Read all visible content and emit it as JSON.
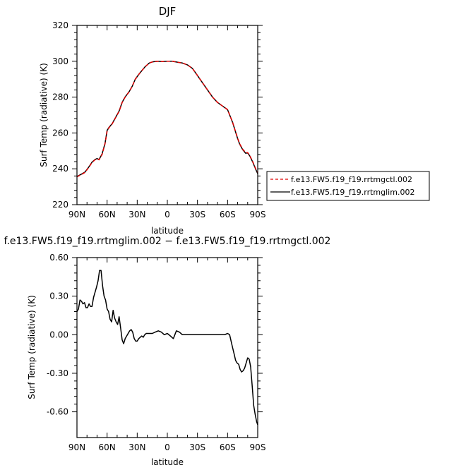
{
  "chart_data": [
    {
      "type": "line",
      "title": "DJF",
      "xlabel": "latitude",
      "ylabel": "Surf Temp (radiative) (K)",
      "xlim": [
        90,
        -90
      ],
      "ylim": [
        220,
        320
      ],
      "x_ticks": [
        90,
        60,
        30,
        0,
        -30,
        -60,
        -90
      ],
      "x_tick_labels": [
        "90N",
        "60N",
        "30N",
        "0",
        "30S",
        "60S",
        "90S"
      ],
      "y_ticks": [
        220,
        240,
        260,
        280,
        300,
        320
      ],
      "y_tick_labels": [
        "220",
        "240",
        "260",
        "280",
        "300",
        "320"
      ],
      "legend_position": "right",
      "series": [
        {
          "name": "f.e13.FW5.f19_f19.rrtmgctl.002",
          "color": "#e00000",
          "dash": "dashed",
          "x": [
            90,
            85,
            82,
            78,
            75,
            72,
            70,
            68,
            65,
            62,
            60,
            58,
            55,
            52,
            48,
            45,
            42,
            38,
            35,
            32,
            28,
            25,
            22,
            18,
            15,
            10,
            5,
            0,
            -5,
            -10,
            -15,
            -20,
            -25,
            -30,
            -35,
            -40,
            -45,
            -50,
            -55,
            -60,
            -65,
            -70,
            -72,
            -75,
            -78,
            -80,
            -82,
            -85,
            -88,
            -90
          ],
          "y": [
            235.5,
            237,
            238,
            241,
            243.5,
            245,
            245.5,
            245,
            248,
            254,
            261,
            263,
            265,
            268,
            272,
            277,
            280,
            283,
            286,
            290,
            293,
            295,
            297,
            299,
            299.6,
            300,
            299.8,
            300,
            300,
            299.5,
            299,
            298,
            296,
            292,
            288,
            284,
            280,
            277,
            275,
            273,
            266,
            257,
            254,
            251,
            249,
            249,
            247.5,
            244,
            240,
            238
          ]
        },
        {
          "name": "f.e13.FW5.f19_f19.rrtmglim.002",
          "color": "#000000",
          "dash": "solid",
          "x": [
            90,
            85,
            82,
            78,
            75,
            72,
            70,
            68,
            65,
            62,
            60,
            58,
            55,
            52,
            48,
            45,
            42,
            38,
            35,
            32,
            28,
            25,
            22,
            18,
            15,
            10,
            5,
            0,
            -5,
            -10,
            -15,
            -20,
            -25,
            -30,
            -35,
            -40,
            -45,
            -50,
            -55,
            -60,
            -65,
            -70,
            -72,
            -75,
            -78,
            -80,
            -82,
            -85,
            -88,
            -90
          ],
          "y": [
            235.7,
            237.2,
            238.2,
            241.2,
            243.7,
            245.2,
            245.7,
            245.2,
            248.3,
            254.3,
            261.4,
            263.2,
            265.1,
            268.1,
            272.2,
            277.1,
            280.1,
            283.1,
            286,
            289.9,
            293,
            295,
            297,
            299,
            299.6,
            300,
            299.8,
            300,
            300,
            299.5,
            299,
            298,
            296,
            292,
            288,
            284,
            280,
            277,
            275,
            273,
            265.9,
            256.8,
            253.8,
            250.7,
            248.7,
            248.8,
            247.3,
            243.8,
            239.7,
            237.3
          ]
        }
      ]
    },
    {
      "type": "line",
      "title": "f.e13.FW5.f19_f19.rrtmglim.002 − f.e13.FW5.f19_f19.rrtmgctl.002",
      "xlabel": "latitude",
      "ylabel": "Surf Temp (radiative) (K)",
      "xlim": [
        90,
        -90
      ],
      "ylim": [
        -0.8,
        0.6
      ],
      "x_ticks": [
        90,
        60,
        30,
        0,
        -30,
        -60,
        -90
      ],
      "x_tick_labels": [
        "90N",
        "60N",
        "30N",
        "0",
        "30S",
        "60S",
        "90S"
      ],
      "y_ticks": [
        -0.6,
        -0.3,
        0.0,
        0.3,
        0.6
      ],
      "y_tick_labels": [
        "-0.60",
        "-0.30",
        "0.00",
        "0.30",
        "0.60"
      ],
      "series": [
        {
          "color": "#000000",
          "x": [
            90,
            88.5,
            87,
            85.5,
            84,
            82.5,
            81,
            79.5,
            78,
            76.5,
            75,
            73.5,
            72,
            70.5,
            69,
            67.5,
            66,
            64.5,
            63,
            61.5,
            60,
            58.5,
            57,
            55.5,
            54,
            52.5,
            51,
            49.5,
            48,
            46.5,
            45,
            43.5,
            42,
            40.5,
            39,
            37.5,
            36,
            34.5,
            33,
            31.5,
            30,
            28.5,
            27,
            25.5,
            24,
            22.5,
            21,
            18,
            15,
            12,
            9,
            6,
            3,
            0,
            -3,
            -6,
            -9,
            -12,
            -15,
            -18,
            -21,
            -24,
            -27,
            -30,
            -33,
            -36,
            -39,
            -42,
            -45,
            -48,
            -51,
            -54,
            -57,
            -60,
            -62,
            -63.5,
            -65,
            -66.5,
            -68,
            -69.5,
            -71,
            -72.5,
            -74,
            -75.5,
            -77,
            -78.5,
            -80,
            -81.5,
            -83,
            -84.5,
            -86,
            -87.5,
            -89,
            -90
          ],
          "y": [
            0.18,
            0.2,
            0.27,
            0.26,
            0.24,
            0.25,
            0.21,
            0.21,
            0.24,
            0.22,
            0.22,
            0.29,
            0.33,
            0.37,
            0.42,
            0.5,
            0.5,
            0.38,
            0.3,
            0.27,
            0.2,
            0.18,
            0.12,
            0.1,
            0.19,
            0.13,
            0.1,
            0.08,
            0.14,
            0.05,
            -0.04,
            -0.07,
            -0.03,
            -0.01,
            0.01,
            0.03,
            0.04,
            0.02,
            -0.03,
            -0.05,
            -0.05,
            -0.03,
            -0.02,
            -0.01,
            -0.02,
            0.0,
            0.01,
            0.01,
            0.01,
            0.02,
            0.03,
            0.02,
            0.0,
            0.01,
            -0.01,
            -0.03,
            0.03,
            0.02,
            0.0,
            0.0,
            0.0,
            0.0,
            0.0,
            0.0,
            0.0,
            0.0,
            0.0,
            0.0,
            0.0,
            0.0,
            0.0,
            0.0,
            0.0,
            0.01,
            0.0,
            -0.05,
            -0.1,
            -0.15,
            -0.2,
            -0.22,
            -0.23,
            -0.27,
            -0.29,
            -0.28,
            -0.26,
            -0.22,
            -0.18,
            -0.19,
            -0.25,
            -0.4,
            -0.55,
            -0.62,
            -0.68,
            -0.7
          ]
        }
      ]
    }
  ]
}
